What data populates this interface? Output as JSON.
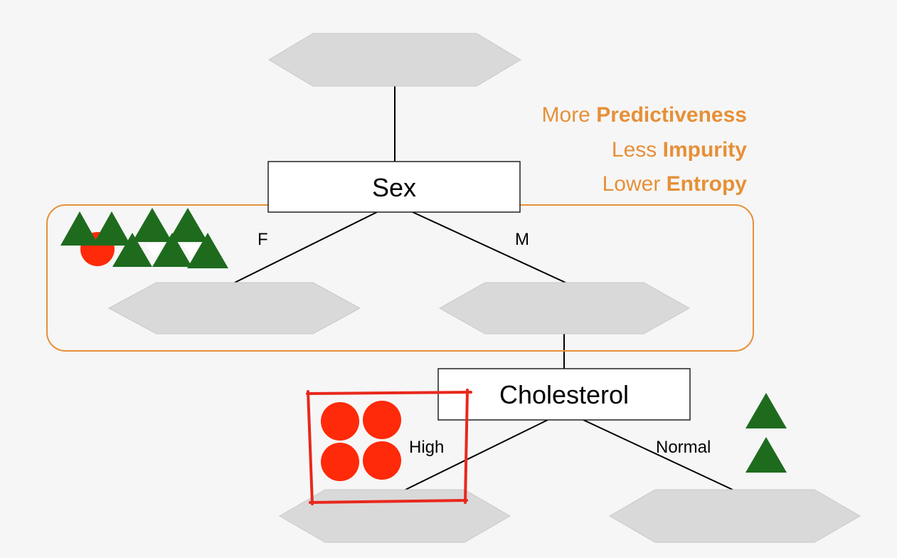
{
  "root": {
    "label": ""
  },
  "sex_node": {
    "label": "Sex"
  },
  "cholesterol_node": {
    "label": "Cholesterol"
  },
  "branches": {
    "female": "F",
    "male": "M",
    "high": "High",
    "normal": "Normal"
  },
  "notes": [
    {
      "prefix": "More ",
      "emphasis": "Predictiveness"
    },
    {
      "prefix": "Less ",
      "emphasis": "Impurity"
    },
    {
      "prefix": "Lower ",
      "emphasis": "Entropy"
    }
  ],
  "colors": {
    "accent": "#e69038",
    "highlight_box": "#e8281c",
    "triangle": "#1e6b1e",
    "circle": "#ff2a0a",
    "leaf_fill": "#d9d9d9"
  },
  "samples": {
    "female_leaf": {
      "triangles": 7,
      "circles": 1
    },
    "high_leaf": {
      "circles": 4
    },
    "normal_leaf": {
      "triangles": 2
    }
  }
}
